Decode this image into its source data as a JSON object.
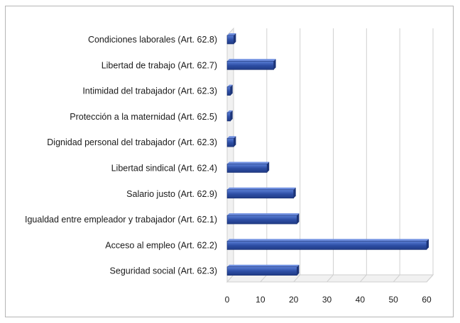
{
  "chart_data": {
    "type": "bar",
    "orientation": "horizontal",
    "style": "3d",
    "bar_color": "#2e4fa6",
    "categories": [
      "Condiciones laborales (Art. 62.8)",
      "Libertad de trabajo (Art. 62.7)",
      "Intimidad del trabajador (Art. 62.3)",
      "Protección a la maternidad (Art. 62.5)",
      "Dignidad personal del trabajador (Art. 62.3)",
      "Libertad sindical (Art. 62.4)",
      "Salario justo (Art. 62.9)",
      "Igualdad entre empleador y trabajador (Art. 62.1)",
      "Acceso al empleo (Art. 62.2)",
      "Seguridad social (Art. 62.3)"
    ],
    "values": [
      2,
      14,
      1,
      1,
      2,
      12,
      20,
      21,
      60,
      21
    ],
    "xlim": [
      0,
      60
    ],
    "xticks": [
      0,
      10,
      20,
      30,
      40,
      50,
      60
    ],
    "grid": "vertical",
    "legend": "none",
    "title": "",
    "xlabel": "",
    "ylabel": ""
  }
}
